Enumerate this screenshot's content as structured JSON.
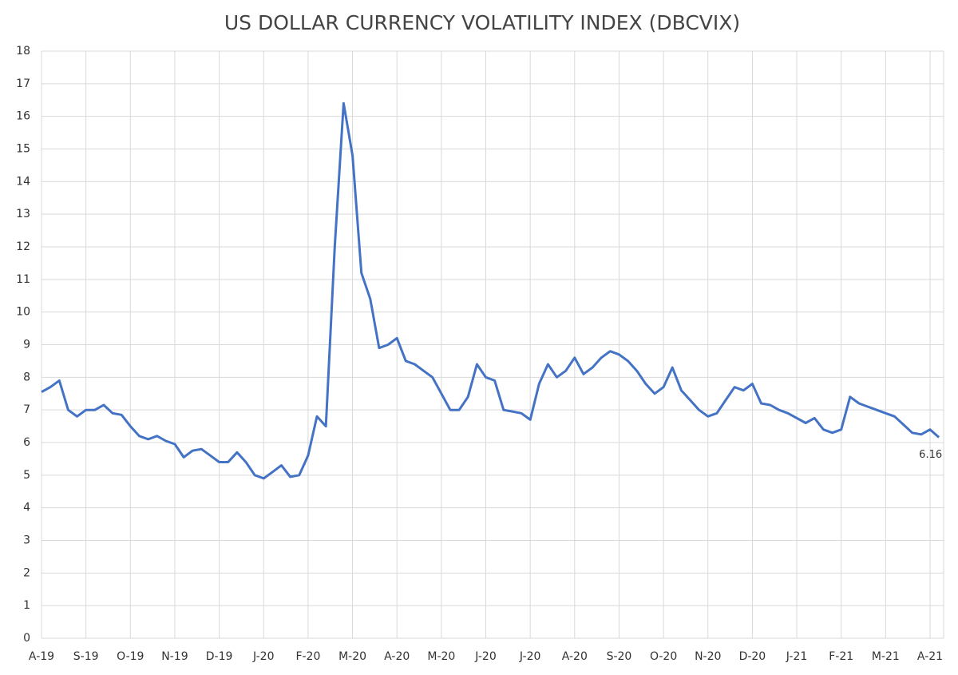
{
  "chart_data": {
    "type": "line",
    "title": "US DOLLAR CURRENCY VOLATILITY INDEX (DBCVIX)",
    "categories": [
      "A-19",
      null,
      null,
      null,
      null,
      "S-19",
      null,
      null,
      null,
      null,
      "O-19",
      null,
      null,
      null,
      null,
      "N-19",
      null,
      null,
      null,
      null,
      "D-19",
      null,
      null,
      null,
      null,
      "J-20",
      null,
      null,
      null,
      null,
      "F-20",
      null,
      null,
      null,
      null,
      "M-20",
      null,
      null,
      null,
      null,
      "A-20",
      null,
      null,
      null,
      null,
      "M-20",
      null,
      null,
      null,
      null,
      "J-20",
      null,
      null,
      null,
      null,
      "J-20",
      null,
      null,
      null,
      null,
      "A-20",
      null,
      null,
      null,
      null,
      "S-20",
      null,
      null,
      null,
      null,
      "O-20",
      null,
      null,
      null,
      null,
      "N-20",
      null,
      null,
      null,
      null,
      "D-20",
      null,
      null,
      null,
      null,
      "J-21",
      null,
      null,
      null,
      null,
      "F-21",
      null,
      null,
      null,
      null,
      "M-21",
      null,
      null,
      null,
      null,
      "A-21",
      null
    ],
    "series": [
      {
        "name": "DBCVIX",
        "color": "#4472c4",
        "values": [
          7.55,
          7.7,
          7.9,
          7.0,
          6.8,
          7.0,
          7.0,
          7.15,
          6.9,
          6.85,
          6.5,
          6.2,
          6.1,
          6.2,
          6.05,
          5.95,
          5.55,
          5.75,
          5.8,
          5.6,
          5.4,
          5.4,
          5.7,
          5.4,
          5.0,
          4.9,
          5.1,
          5.3,
          4.95,
          5.0,
          5.6,
          6.8,
          6.5,
          12.0,
          16.4,
          14.8,
          11.2,
          10.4,
          8.9,
          9.0,
          9.2,
          8.5,
          8.4,
          8.2,
          8.0,
          7.5,
          7.0,
          7.0,
          7.4,
          8.4,
          8.0,
          7.9,
          7.0,
          6.95,
          6.9,
          6.7,
          7.8,
          8.4,
          8.0,
          8.2,
          8.6,
          8.1,
          8.3,
          8.6,
          8.8,
          8.7,
          8.5,
          8.2,
          7.8,
          7.5,
          7.7,
          8.3,
          7.6,
          7.3,
          7.0,
          6.8,
          6.9,
          7.3,
          7.7,
          7.6,
          7.8,
          7.2,
          7.15,
          7.0,
          6.9,
          6.75,
          6.6,
          6.75,
          6.4,
          6.3,
          6.4,
          7.4,
          7.2,
          7.1,
          7.0,
          6.9,
          6.8,
          6.55,
          6.3,
          6.25,
          6.4,
          6.16
        ]
      }
    ],
    "ylim": [
      0,
      18
    ],
    "yticks": [
      0,
      1,
      2,
      3,
      4,
      5,
      6,
      7,
      8,
      9,
      10,
      11,
      12,
      13,
      14,
      15,
      16,
      17,
      18
    ],
    "grid": true,
    "end_label_index": 101
  }
}
